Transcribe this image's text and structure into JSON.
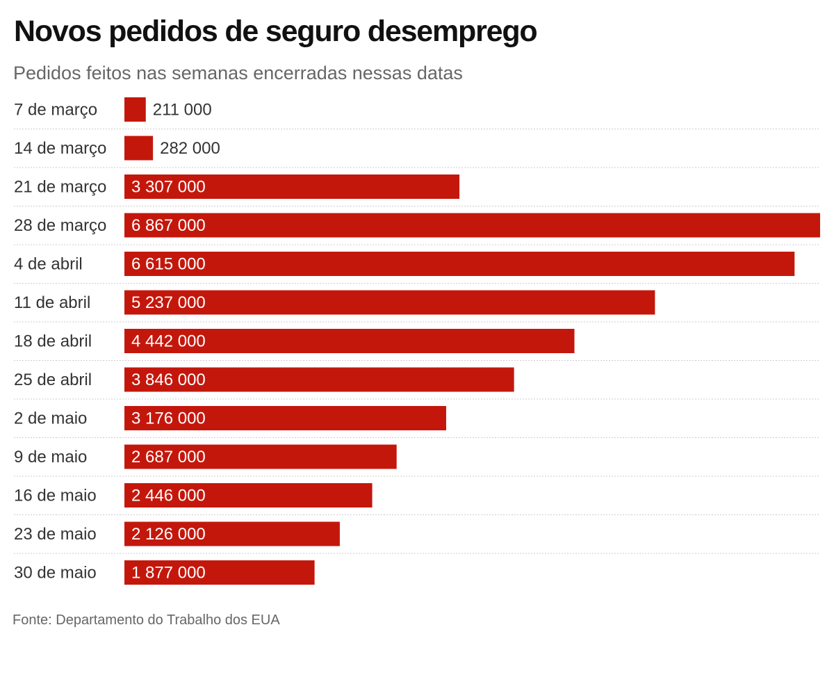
{
  "header": {
    "title": "Novos pedidos de seguro desemprego",
    "subtitle": "Pedidos feitos nas semanas encerradas nessas datas"
  },
  "footer": {
    "source": "Fonte: Departamento do Trabalho dos EUA"
  },
  "colors": {
    "bar": "#c4170c",
    "label_inside": "#ffffff",
    "label_outside": "#333333",
    "row_label": "#333333",
    "divider": "#cccccc"
  },
  "chart_data": {
    "type": "bar",
    "orientation": "horizontal",
    "title": "Novos pedidos de seguro desemprego",
    "subtitle": "Pedidos feitos nas semanas encerradas nessas datas",
    "xlabel": "",
    "ylabel": "",
    "xlim": [
      0,
      6867000
    ],
    "grid": false,
    "categories": [
      "7 de março",
      "14 de março",
      "21 de março",
      "28 de março",
      "4 de abril",
      "11 de abril",
      "18 de abril",
      "25 de abril",
      "2 de maio",
      "9 de maio",
      "16 de maio",
      "23 de maio",
      "30 de maio"
    ],
    "values": [
      211000,
      282000,
      3307000,
      6867000,
      6615000,
      5237000,
      4442000,
      3846000,
      3176000,
      2687000,
      2446000,
      2126000,
      1877000
    ],
    "value_labels": [
      "211 000",
      "282 000",
      "3 307 000",
      "6 867 000",
      "6 615 000",
      "5 237 000",
      "4 442 000",
      "3 846 000",
      "3 176 000",
      "2 687 000",
      "2 446 000",
      "2 126 000",
      "1 877 000"
    ]
  }
}
